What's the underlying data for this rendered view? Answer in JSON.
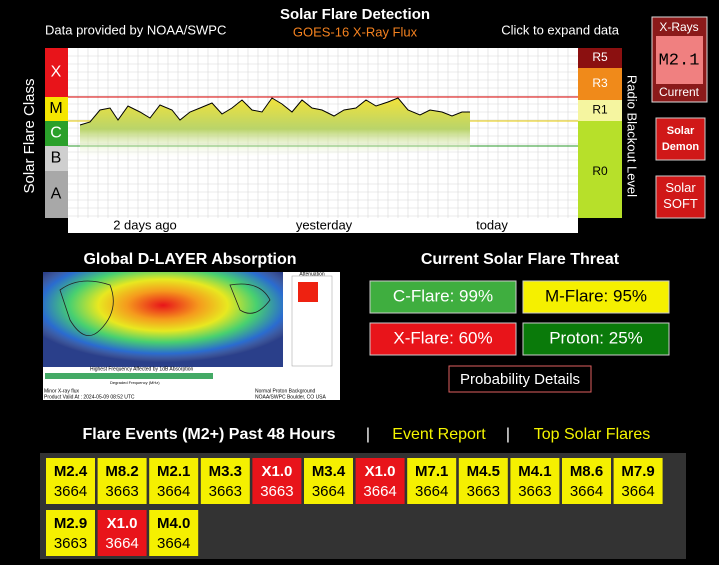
{
  "header": {
    "title": "Solar Flare Detection",
    "source": "Data provided by NOAA/SWPC",
    "subtitle": "GOES-16 X-Ray Flux",
    "hint": "Click to expand data"
  },
  "xray_plot": {
    "y_label": "Solar Flare Class",
    "classes": [
      "X",
      "M",
      "C",
      "B",
      "A"
    ],
    "right_label": "Radio Blackout Level",
    "levels": [
      "R5",
      "R3",
      "R1",
      "R0"
    ],
    "x_labels": [
      "2 days ago",
      "yesterday",
      "today"
    ]
  },
  "sidebar": {
    "xrays": "X-Rays",
    "current_value": "M2.1",
    "current": "Current",
    "demon": "Solar Demon",
    "soft": "Solar SOFT"
  },
  "dlayer": {
    "title": "Global D-LAYER Absorption",
    "attenuation": "Attenuation",
    "legend": "Highest Frequency Affected by 1dB Absorption",
    "axis": "Degraded Frequency (MHz)",
    "flux": "Minor X-ray flux",
    "valid": "Product Valid At : 2024-05-09 08:52 UTC",
    "proton": "Normal Proton Background",
    "credit": "NOAA/SWPC Boulder, CO USA"
  },
  "threat": {
    "title": "Current Solar Flare Threat",
    "items": [
      "C-Flare: 99%",
      "M-Flare: 95%",
      "X-Flare: 60%",
      "Proton: 25%"
    ],
    "details": "Probability Details"
  },
  "events": {
    "title": "Flare Events (M2+) Past 48 Hours",
    "sep": "|",
    "report": "Event Report",
    "top": "Top Solar Flares",
    "items": [
      {
        "class": "M2.4",
        "region": "3664"
      },
      {
        "class": "M8.2",
        "region": "3663"
      },
      {
        "class": "M2.1",
        "region": "3664"
      },
      {
        "class": "M3.3",
        "region": "3663"
      },
      {
        "class": "X1.0",
        "region": "3663"
      },
      {
        "class": "M3.4",
        "region": "3664"
      },
      {
        "class": "X1.0",
        "region": "3664"
      },
      {
        "class": "M7.1",
        "region": "3664"
      },
      {
        "class": "M4.5",
        "region": "3663"
      },
      {
        "class": "M4.1",
        "region": "3663"
      },
      {
        "class": "M8.6",
        "region": "3664"
      },
      {
        "class": "M7.9",
        "region": "3664"
      },
      {
        "class": "M2.9",
        "region": "3663"
      },
      {
        "class": "X1.0",
        "region": "3664"
      },
      {
        "class": "M4.0",
        "region": "3664"
      }
    ]
  }
}
